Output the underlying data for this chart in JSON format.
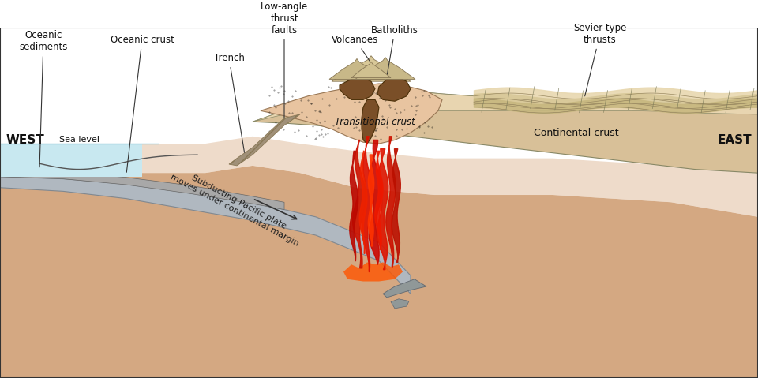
{
  "bg_color": "#ffffff",
  "mantle_color": "#d4a882",
  "mantle_light": "#deb896",
  "ocean_color": "#c8e8f0",
  "slab_color": "#b0b8c0",
  "slab_edge": "#808890",
  "oceanic_crust_color": "#a8a8a8",
  "transitional_color": "#e8c4a0",
  "continental_color": "#d8c098",
  "continental_top": "#e8d5b0",
  "continental_deep": "#c8aa80",
  "batholith_color": "#7a4f28",
  "batholith_edge": "#4a2f08",
  "sevier_color1": "#e8d8b0",
  "sevier_color2": "#d8c898",
  "sevier_color3": "#c8b880",
  "trench_hatch_color": "#a09078",
  "flame_red1": "#cc1100",
  "flame_red2": "#dd2200",
  "flame_orange": "#ff5500",
  "west_label": "WEST",
  "east_label": "EAST",
  "label_oceanic_sediments": "Oceanic\nsediments",
  "label_oceanic_crust": "Oceanic crust",
  "label_low_angle": "Low-angle\nthrust\nfaults",
  "label_trench": "Trench",
  "label_batholiths": "Batholiths",
  "label_volcanoes": "Volcanoes",
  "label_sevier": "Sevier-type\nthrusts",
  "label_transitional": "Transitional crust",
  "label_continental": "Continental crust",
  "label_subducting": "Subducting Pacific plate\nmoves under continental margin",
  "label_sea_level": "Sea level"
}
